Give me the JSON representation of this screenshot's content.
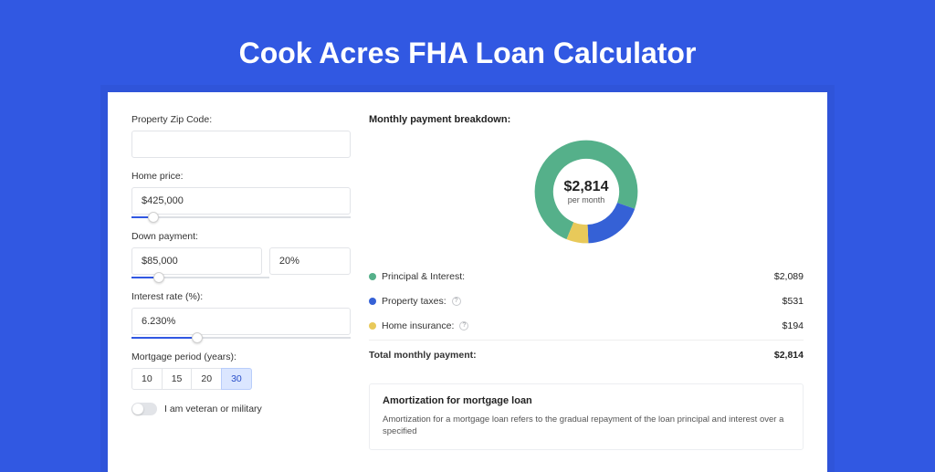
{
  "page_title": "Cook Acres FHA Loan Calculator",
  "colors": {
    "background": "#3158e2",
    "card_bg": "#ffffff",
    "input_border": "#e2e4e8",
    "slider_track": "#dcdfe4",
    "slider_fill": "#3158e2",
    "active_period_bg": "#dbe6ff",
    "text_dark": "#222222"
  },
  "form": {
    "zip": {
      "label": "Property Zip Code:",
      "value": ""
    },
    "home_price": {
      "label": "Home price:",
      "value": "$425,000",
      "slider_pct": 10
    },
    "down_payment": {
      "label": "Down payment:",
      "value": "$85,000",
      "pct_value": "20%",
      "slider_pct": 20
    },
    "interest_rate": {
      "label": "Interest rate (%):",
      "value": "6.230%",
      "slider_pct": 30
    },
    "mortgage_period": {
      "label": "Mortgage period (years):",
      "options": [
        "10",
        "15",
        "20",
        "30"
      ],
      "active_index": 3
    },
    "veteran": {
      "label": "I am veteran or military",
      "checked": false
    }
  },
  "breakdown": {
    "heading": "Monthly payment breakdown:",
    "donut": {
      "amount": "$2,814",
      "sub": "per month",
      "slices": [
        {
          "label": "Principal & Interest:",
          "value": "$2,089",
          "fraction": 0.742,
          "color": "#55b08a"
        },
        {
          "label": "Property taxes:",
          "value": "$531",
          "fraction": 0.189,
          "color": "#3561d6",
          "has_info": true
        },
        {
          "label": "Home insurance:",
          "value": "$194",
          "fraction": 0.069,
          "color": "#e8c95a",
          "has_info": true
        }
      ]
    },
    "total_label": "Total monthly payment:",
    "total_value": "$2,814"
  },
  "amortization": {
    "title": "Amortization for mortgage loan",
    "body": "Amortization for a mortgage loan refers to the gradual repayment of the loan principal and interest over a specified"
  }
}
